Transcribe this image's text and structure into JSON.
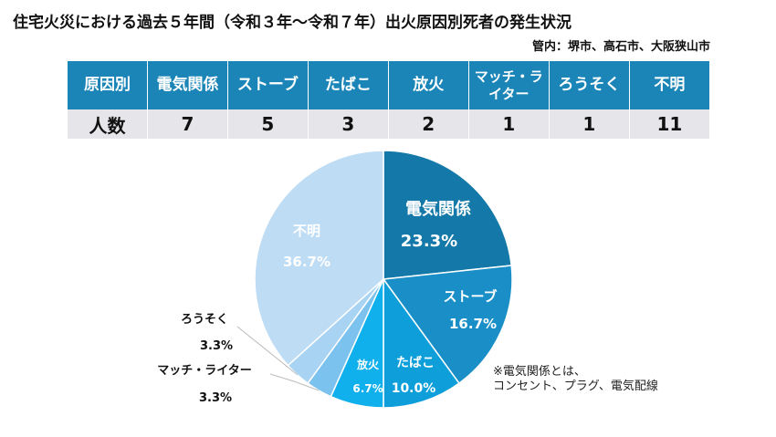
{
  "title": "住宅火災における過去５年間（令和３年～令和７年）出火原因別死者の発生状況",
  "subtitle": "管内：堺市、高石市、大阪狭山市",
  "table": {
    "header_label": "原因別",
    "row_label": "人数",
    "columns": [
      "電気関係",
      "ストーブ",
      "たばこ",
      "放火",
      "マッチ・ライター",
      "ろうそく",
      "不明"
    ],
    "values": [
      "7",
      "5",
      "3",
      "2",
      "1",
      "1",
      "11"
    ]
  },
  "note": [
    "※電気関係とは、",
    "コンセント、プラグ、電気配線"
  ],
  "chart_data": {
    "type": "pie",
    "title": "",
    "slices": [
      {
        "label": "電気関係",
        "value": 23.3,
        "text": "23.3%",
        "color": "#1479a8"
      },
      {
        "label": "ストーブ",
        "value": 16.7,
        "text": "16.7%",
        "color": "#1a8fc7"
      },
      {
        "label": "たばこ",
        "value": 10.0,
        "text": "10.0%",
        "color": "#0e9fda"
      },
      {
        "label": "放火",
        "value": 6.7,
        "text": "6.7%",
        "color": "#10b0ec"
      },
      {
        "label": "マッチ・ライター",
        "value": 3.3,
        "text": "3.3%",
        "color": "#7cc2ee"
      },
      {
        "label": "ろうそく",
        "value": 3.3,
        "text": "3.3%",
        "color": "#a8d3f3"
      },
      {
        "label": "不明",
        "value": 36.7,
        "text": "36.7%",
        "color": "#bfdcf5"
      }
    ]
  }
}
